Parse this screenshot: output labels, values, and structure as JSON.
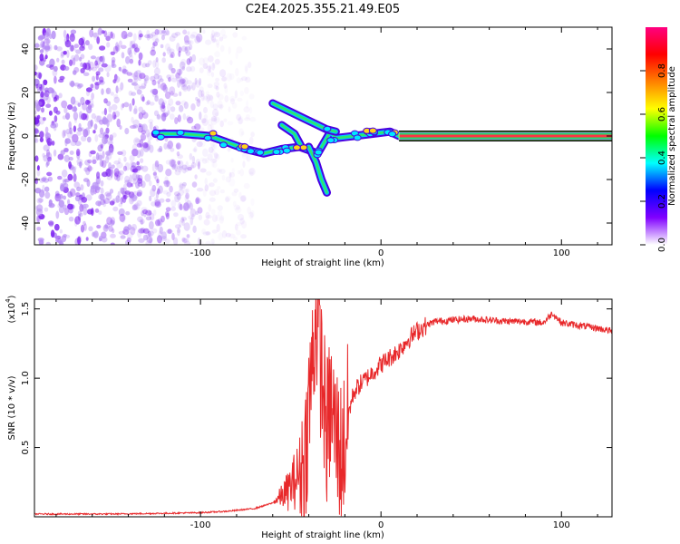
{
  "chart_data": [
    {
      "type": "heatmap",
      "title": "C2E4.2025.355.21.49.E05",
      "xlabel": "Height of straight line (km)",
      "ylabel": "Frequency (Hz)",
      "xlim": [
        -192,
        128
      ],
      "ylim": [
        -50,
        50
      ],
      "xticks": [
        -100,
        0,
        100
      ],
      "xtick_labels": [
        "-100",
        "0",
        "100"
      ],
      "yticks": [
        -40,
        -20,
        0,
        20,
        40
      ],
      "ytick_labels": [
        "-40",
        "-20",
        "0",
        "20",
        "40"
      ],
      "colorbar": {
        "label": "Normalized spectral amplitude",
        "range": [
          0,
          1
        ],
        "ticks": [
          0.0,
          0.2,
          0.4,
          0.6,
          0.8
        ],
        "tick_labels": [
          "0.0",
          "0.2",
          "0.4",
          "0.6",
          "0.8"
        ],
        "colormap": [
          "#ffffff",
          "#8000ff",
          "#0000ff",
          "#00ffff",
          "#00ff00",
          "#ffff00",
          "#ff8000",
          "#ff0000",
          "#ff0080"
        ]
      },
      "ridge": {
        "description": "strong narrow-band signal",
        "points": [
          {
            "x": -125,
            "y": 1
          },
          {
            "x": -110,
            "y": 1
          },
          {
            "x": -95,
            "y": 0
          },
          {
            "x": -85,
            "y": -3
          },
          {
            "x": -75,
            "y": -6
          },
          {
            "x": -65,
            "y": -8
          },
          {
            "x": -55,
            "y": -6
          },
          {
            "x": -45,
            "y": -5
          },
          {
            "x": -35,
            "y": -8
          },
          {
            "x": -28,
            "y": 2
          },
          {
            "x": -25,
            "y": -1
          },
          {
            "x": -15,
            "y": 0
          },
          {
            "x": -5,
            "y": 1
          },
          {
            "x": 5,
            "y": 2
          },
          {
            "x": 10,
            "y": 0
          },
          {
            "x": 128,
            "y": 0
          }
        ],
        "branches": [
          [
            {
              "x": -60,
              "y": 15
            },
            {
              "x": -50,
              "y": 11
            },
            {
              "x": -40,
              "y": 7
            },
            {
              "x": -30,
              "y": 3
            },
            {
              "x": -25,
              "y": 2
            }
          ],
          [
            {
              "x": -40,
              "y": -5
            },
            {
              "x": -36,
              "y": -12
            },
            {
              "x": -33,
              "y": -20
            },
            {
              "x": -30,
              "y": -26
            }
          ],
          [
            {
              "x": -55,
              "y": 5
            },
            {
              "x": -48,
              "y": 1
            },
            {
              "x": -44,
              "y": -5
            }
          ]
        ],
        "steady_band": {
          "x_start": 10,
          "x_end": 128,
          "y": 0
        }
      },
      "noise_region": {
        "x_start": -192,
        "x_end": -70,
        "y_range": [
          -50,
          48
        ]
      }
    },
    {
      "type": "line",
      "xlabel": "Height of straight line (km)",
      "ylabel": "SNR (10 * v/v)",
      "y_multiplier": "(x10",
      "y_exponent": "4",
      "y_multiplier_close": ")",
      "xlim": [
        -192,
        128
      ],
      "ylim": [
        0,
        1.57
      ],
      "xticks": [
        -100,
        0,
        100
      ],
      "xtick_labels": [
        "-100",
        "0",
        "100"
      ],
      "yticks": [
        0.5,
        1.0,
        1.5
      ],
      "ytick_labels": [
        "0.5",
        "1.0",
        "1.5"
      ],
      "series": [
        {
          "name": "SNR",
          "color": "#e8282a",
          "points": [
            {
              "x": -192,
              "y": 0.02
            },
            {
              "x": -150,
              "y": 0.02
            },
            {
              "x": -120,
              "y": 0.025
            },
            {
              "x": -100,
              "y": 0.03
            },
            {
              "x": -85,
              "y": 0.04
            },
            {
              "x": -70,
              "y": 0.06
            },
            {
              "x": -60,
              "y": 0.1
            },
            {
              "x": -52,
              "y": 0.18
            },
            {
              "x": -46,
              "y": 0.3
            },
            {
              "x": -42,
              "y": 0.45
            },
            {
              "x": -40,
              "y": 0.8
            },
            {
              "x": -38,
              "y": 1.1
            },
            {
              "x": -36,
              "y": 1.5
            },
            {
              "x": -34,
              "y": 1.2
            },
            {
              "x": -32,
              "y": 0.9
            },
            {
              "x": -30,
              "y": 0.6
            },
            {
              "x": -28,
              "y": 0.8
            },
            {
              "x": -25,
              "y": 0.6
            },
            {
              "x": -22,
              "y": 0.45
            },
            {
              "x": -20,
              "y": 0.55
            },
            {
              "x": -18,
              "y": 0.75
            },
            {
              "x": -15,
              "y": 0.9
            },
            {
              "x": -12,
              "y": 0.95
            },
            {
              "x": -8,
              "y": 1.0
            },
            {
              "x": -4,
              "y": 1.05
            },
            {
              "x": 0,
              "y": 1.1
            },
            {
              "x": 5,
              "y": 1.15
            },
            {
              "x": 10,
              "y": 1.2
            },
            {
              "x": 15,
              "y": 1.28
            },
            {
              "x": 20,
              "y": 1.34
            },
            {
              "x": 25,
              "y": 1.38
            },
            {
              "x": 30,
              "y": 1.41
            },
            {
              "x": 40,
              "y": 1.42
            },
            {
              "x": 50,
              "y": 1.43
            },
            {
              "x": 60,
              "y": 1.42
            },
            {
              "x": 70,
              "y": 1.41
            },
            {
              "x": 80,
              "y": 1.41
            },
            {
              "x": 90,
              "y": 1.4
            },
            {
              "x": 95,
              "y": 1.47
            },
            {
              "x": 100,
              "y": 1.4
            },
            {
              "x": 110,
              "y": 1.38
            },
            {
              "x": 120,
              "y": 1.36
            },
            {
              "x": 128,
              "y": 1.34
            }
          ]
        }
      ]
    }
  ]
}
